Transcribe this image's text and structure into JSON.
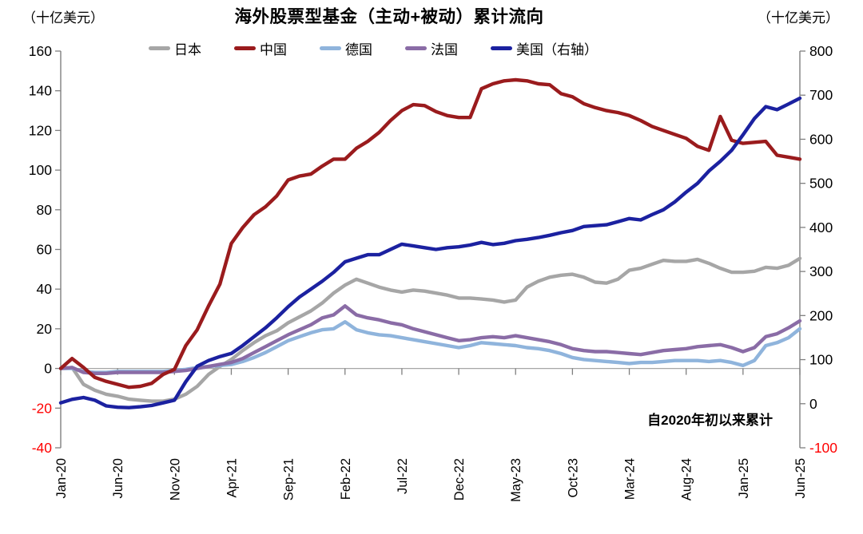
{
  "chart": {
    "title": "海外股票型基金（主动+被动）累计流向",
    "left_axis_unit": "（十亿美元）",
    "right_axis_unit": "（十亿美元）",
    "annotation": "自2020年初以来累计",
    "colors": {
      "axis_line": "#7f7f7f",
      "zero_line": "#a6a6a6",
      "tick_label": "#000000",
      "negative_tick_label": "#ff0000",
      "background": "#ffffff"
    }
  },
  "chart_data": {
    "type": "line",
    "title": "海外股票型基金（主动+被动）累计流向",
    "annotation": "自2020年初以来累计",
    "legend_position": "top",
    "grid": "zero-line-only",
    "x": [
      "Jan-20",
      "Feb-20",
      "Mar-20",
      "Apr-20",
      "May-20",
      "Jun-20",
      "Jul-20",
      "Aug-20",
      "Sep-20",
      "Oct-20",
      "Nov-20",
      "Dec-20",
      "Jan-21",
      "Feb-21",
      "Mar-21",
      "Apr-21",
      "May-21",
      "Jun-21",
      "Jul-21",
      "Aug-21",
      "Sep-21",
      "Oct-21",
      "Nov-21",
      "Dec-21",
      "Jan-22",
      "Feb-22",
      "Mar-22",
      "Apr-22",
      "May-22",
      "Jun-22",
      "Jul-22",
      "Aug-22",
      "Sep-22",
      "Oct-22",
      "Nov-22",
      "Dec-22",
      "Jan-23",
      "Feb-23",
      "Mar-23",
      "Apr-23",
      "May-23",
      "Jun-23",
      "Jul-23",
      "Aug-23",
      "Sep-23",
      "Oct-23",
      "Nov-23",
      "Dec-23",
      "Jan-24",
      "Feb-24",
      "Mar-24",
      "Apr-24",
      "May-24",
      "Jun-24",
      "Jul-24",
      "Aug-24",
      "Sep-24",
      "Oct-24",
      "Nov-24",
      "Dec-24",
      "Jan-25",
      "Feb-25",
      "Mar-25",
      "Apr-25",
      "May-25",
      "Jun-25"
    ],
    "x_tick_labels": [
      "Jan-20",
      "Jun-20",
      "Nov-20",
      "Apr-21",
      "Sep-21",
      "Feb-22",
      "Jul-22",
      "Dec-22",
      "May-23",
      "Oct-23",
      "Mar-24",
      "Aug-24",
      "Jan-25",
      "Jun-25"
    ],
    "left_axis": {
      "unit": "（十亿美元）",
      "min": -40,
      "max": 160,
      "ticks": [
        160,
        140,
        120,
        100,
        80,
        60,
        40,
        20,
        0,
        -20,
        -40
      ]
    },
    "right_axis": {
      "unit": "（十亿美元）",
      "min": -100,
      "max": 800,
      "ticks": [
        800,
        700,
        600,
        500,
        400,
        300,
        200,
        100,
        0,
        -100
      ]
    },
    "series": [
      {
        "id": "japan",
        "name": "日本",
        "axis": "left",
        "color": "#a6a6a6",
        "values": [
          0,
          0.5,
          -8,
          -11,
          -13,
          -14,
          -15.5,
          -16,
          -16.5,
          -16.5,
          -15.5,
          -13,
          -9,
          -3,
          1,
          4.5,
          9,
          13,
          16.5,
          19,
          23,
          26,
          29,
          33,
          38,
          42,
          45,
          43,
          41,
          39.5,
          38.5,
          39.5,
          39,
          38,
          37,
          35.5,
          35.5,
          35,
          34.5,
          33.5,
          34.5,
          41,
          44,
          46,
          47,
          47.5,
          46,
          43.5,
          43,
          45,
          49.5,
          50.5,
          52.5,
          54.5,
          54,
          54,
          55,
          53,
          50.5,
          48.5,
          48.5,
          49,
          51,
          50.5,
          52,
          55.5
        ]
      },
      {
        "id": "china",
        "name": "中国",
        "axis": "left",
        "color": "#9a1b1d",
        "values": [
          0,
          5,
          0.5,
          -4.5,
          -6.5,
          -8,
          -9.5,
          -9,
          -7.5,
          -3,
          -0.5,
          11.5,
          19.5,
          31.5,
          42.5,
          63,
          71,
          77.5,
          81.5,
          87,
          95,
          97,
          98,
          102,
          105.5,
          105.5,
          111,
          114.5,
          119,
          125,
          130,
          133,
          132.5,
          129.5,
          127.5,
          126.5,
          126.5,
          141,
          143.5,
          145,
          145.5,
          145,
          143.5,
          143,
          138.5,
          137,
          133.5,
          131.5,
          130,
          129,
          127.5,
          125,
          122,
          120,
          118,
          116,
          112,
          110,
          127,
          115,
          113.5,
          114,
          114.5,
          107.5,
          106.5,
          105.5
        ]
      },
      {
        "id": "germany",
        "name": "德国",
        "axis": "left",
        "color": "#8fb4dc",
        "values": [
          0,
          0,
          -1.5,
          -2,
          -2,
          -1.5,
          -1.5,
          -1.5,
          -1.5,
          -1.5,
          -1,
          -0.5,
          0.5,
          1,
          1.5,
          2,
          3.5,
          5.5,
          8,
          11,
          14,
          16,
          18,
          19.5,
          20,
          23.5,
          19.5,
          18,
          17,
          16.5,
          15.5,
          14.5,
          13.5,
          12.5,
          11.5,
          10.5,
          11.5,
          13,
          12.5,
          12,
          11.5,
          10.5,
          10,
          9,
          7.5,
          5.5,
          4.5,
          4,
          3.5,
          3,
          2.5,
          3,
          3,
          3.5,
          4,
          4,
          4,
          3.5,
          4,
          3,
          1.5,
          4,
          11.5,
          13,
          15.5,
          20
        ]
      },
      {
        "id": "france",
        "name": "法国",
        "axis": "left",
        "color": "#8a6ca6",
        "values": [
          0,
          0.5,
          -2,
          -2.5,
          -2.5,
          -2,
          -2,
          -2,
          -2,
          -2,
          -1.5,
          -1,
          0,
          1,
          2,
          3,
          5,
          8,
          11,
          14,
          17,
          19.5,
          22,
          25.5,
          27,
          31.5,
          27,
          25.5,
          24.5,
          23,
          22,
          20,
          18.5,
          17,
          15.5,
          14,
          14.5,
          15.5,
          16,
          15.5,
          16.5,
          15.5,
          14.5,
          13.5,
          12,
          10,
          9,
          8.5,
          8.5,
          8,
          7.5,
          7,
          8,
          9,
          9.5,
          10,
          11,
          11.5,
          12,
          10.5,
          8.5,
          10.5,
          16,
          17.5,
          20.5,
          24
        ]
      },
      {
        "id": "us",
        "name": "美国（右轴）",
        "axis": "right",
        "color": "#1b21a0",
        "values": [
          2,
          10,
          14,
          8,
          -5,
          -8,
          -9,
          -7,
          -4,
          2,
          8,
          50,
          85,
          98,
          107,
          114,
          132,
          152,
          172,
          195,
          220,
          242,
          260,
          278,
          298,
          322,
          330,
          338,
          338,
          350,
          362,
          358,
          354,
          350,
          354,
          356,
          360,
          366,
          361,
          364,
          370,
          373,
          377,
          382,
          388,
          393,
          402,
          404,
          406,
          413,
          420,
          417,
          429,
          440,
          458,
          480,
          500,
          528,
          550,
          575,
          610,
          647,
          674,
          667,
          680,
          693
        ]
      }
    ]
  }
}
